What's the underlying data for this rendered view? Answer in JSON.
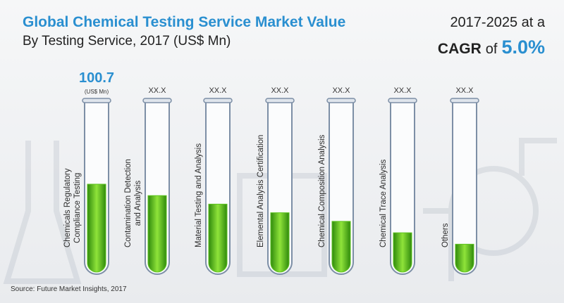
{
  "chart_data": {
    "type": "test-tube",
    "title": "Global Chemical Testing Service Market Value",
    "subtitle": "By Testing Service, 2017 (US$ Mn)",
    "period_text": "2017-2025 at a",
    "cagr_label": "CAGR",
    "cagr_of": "of",
    "cagr_value": "5.0%",
    "value_unit_note": "(US$ Mn)",
    "categories": [
      "Chemicals Regulatory\nCompliance Testing",
      "Contamination Detection\nand Analysis",
      "Material Testing and Analysis",
      "Elemental Analysis Certification",
      "Chemical Composition Analysis",
      "Chemical Trace Analysis",
      "Others"
    ],
    "values": [
      100.7,
      87.6,
      77.8,
      68.0,
      58.1,
      45.0,
      31.9
    ],
    "value_labels": [
      "100.7",
      "XX.X",
      "XX.X",
      "XX.X",
      "XX.X",
      "XX.X",
      "XX.X"
    ],
    "color": "#5cc21e",
    "source": "Source: Future Market Insights, 2017"
  }
}
